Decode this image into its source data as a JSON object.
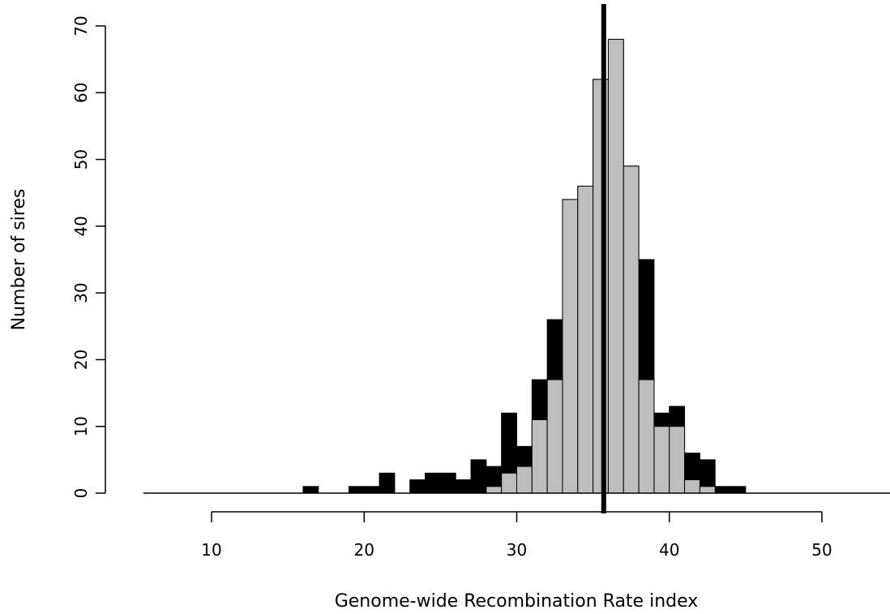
{
  "chart_data": {
    "type": "bar",
    "title": "",
    "xlabel": "Genome-wide Recombination Rate index",
    "ylabel": "Number of sires",
    "xlim": [
      5,
      55
    ],
    "ylim": [
      0,
      70
    ],
    "x_ticks": [
      10,
      20,
      30,
      40,
      50
    ],
    "y_ticks": [
      0,
      10,
      20,
      30,
      40,
      50,
      60,
      70
    ],
    "bin_width": 1,
    "bin_starts": [
      16,
      19,
      20,
      21,
      23,
      24,
      25,
      26,
      27,
      28,
      29,
      30,
      31,
      32,
      33,
      34,
      35,
      36,
      37,
      38,
      39,
      40,
      41,
      42,
      43,
      44
    ],
    "series": [
      {
        "color": "#000000",
        "values": [
          1,
          1,
          1,
          3,
          2,
          3,
          3,
          2,
          5,
          4,
          12,
          7,
          17,
          26,
          44,
          46,
          62,
          68,
          49,
          35,
          12,
          13,
          6,
          5,
          1,
          1
        ]
      },
      {
        "color": "#bebebe",
        "values": [
          0,
          0,
          0,
          0,
          0,
          0,
          0,
          0,
          0,
          1,
          3,
          4,
          11,
          17,
          44,
          46,
          62,
          68,
          49,
          17,
          10,
          10,
          2,
          1,
          0,
          0
        ]
      }
    ],
    "vertical_line": {
      "x": 35.7,
      "color": "#000000"
    },
    "baseline": {
      "y": 0
    },
    "grid": false,
    "legend": "none"
  }
}
